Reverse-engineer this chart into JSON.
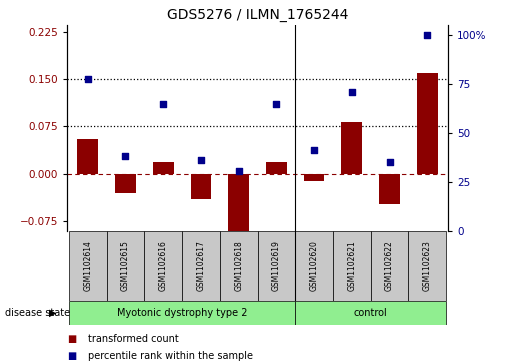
{
  "title": "GDS5276 / ILMN_1765244",
  "samples": [
    "GSM1102614",
    "GSM1102615",
    "GSM1102616",
    "GSM1102617",
    "GSM1102618",
    "GSM1102619",
    "GSM1102620",
    "GSM1102621",
    "GSM1102622",
    "GSM1102623"
  ],
  "red_bars": [
    0.055,
    -0.03,
    0.018,
    -0.04,
    -0.09,
    0.018,
    -0.012,
    0.082,
    -0.048,
    0.16
  ],
  "blue_dots": [
    0.15,
    0.028,
    0.11,
    0.022,
    0.005,
    0.11,
    0.038,
    0.13,
    0.018,
    0.22
  ],
  "left_ylim": [
    -0.09,
    0.235
  ],
  "left_yticks": [
    -0.075,
    0.0,
    0.075,
    0.15,
    0.225
  ],
  "right_ylim": [
    0,
    105
  ],
  "right_yticks": [
    0,
    25,
    50,
    75,
    100
  ],
  "right_yticklabels": [
    "0",
    "25",
    "50",
    "75",
    "100%"
  ],
  "hlines": [
    0.075,
    0.15
  ],
  "zero_line": 0.0,
  "bar_color": "#8B0000",
  "dot_color": "#00008B",
  "bar_width": 0.55,
  "groups": [
    {
      "label": "Myotonic dystrophy type 2",
      "start": 0,
      "end": 5,
      "color": "#90EE90"
    },
    {
      "label": "control",
      "start": 6,
      "end": 9,
      "color": "#90EE90"
    }
  ],
  "disease_state_label": "disease state",
  "legend_items": [
    {
      "color": "#8B0000",
      "label": "transformed count"
    },
    {
      "color": "#00008B",
      "label": "percentile rank within the sample"
    }
  ],
  "sample_box_color": "#C8C8C8",
  "background_color": "#ffffff"
}
